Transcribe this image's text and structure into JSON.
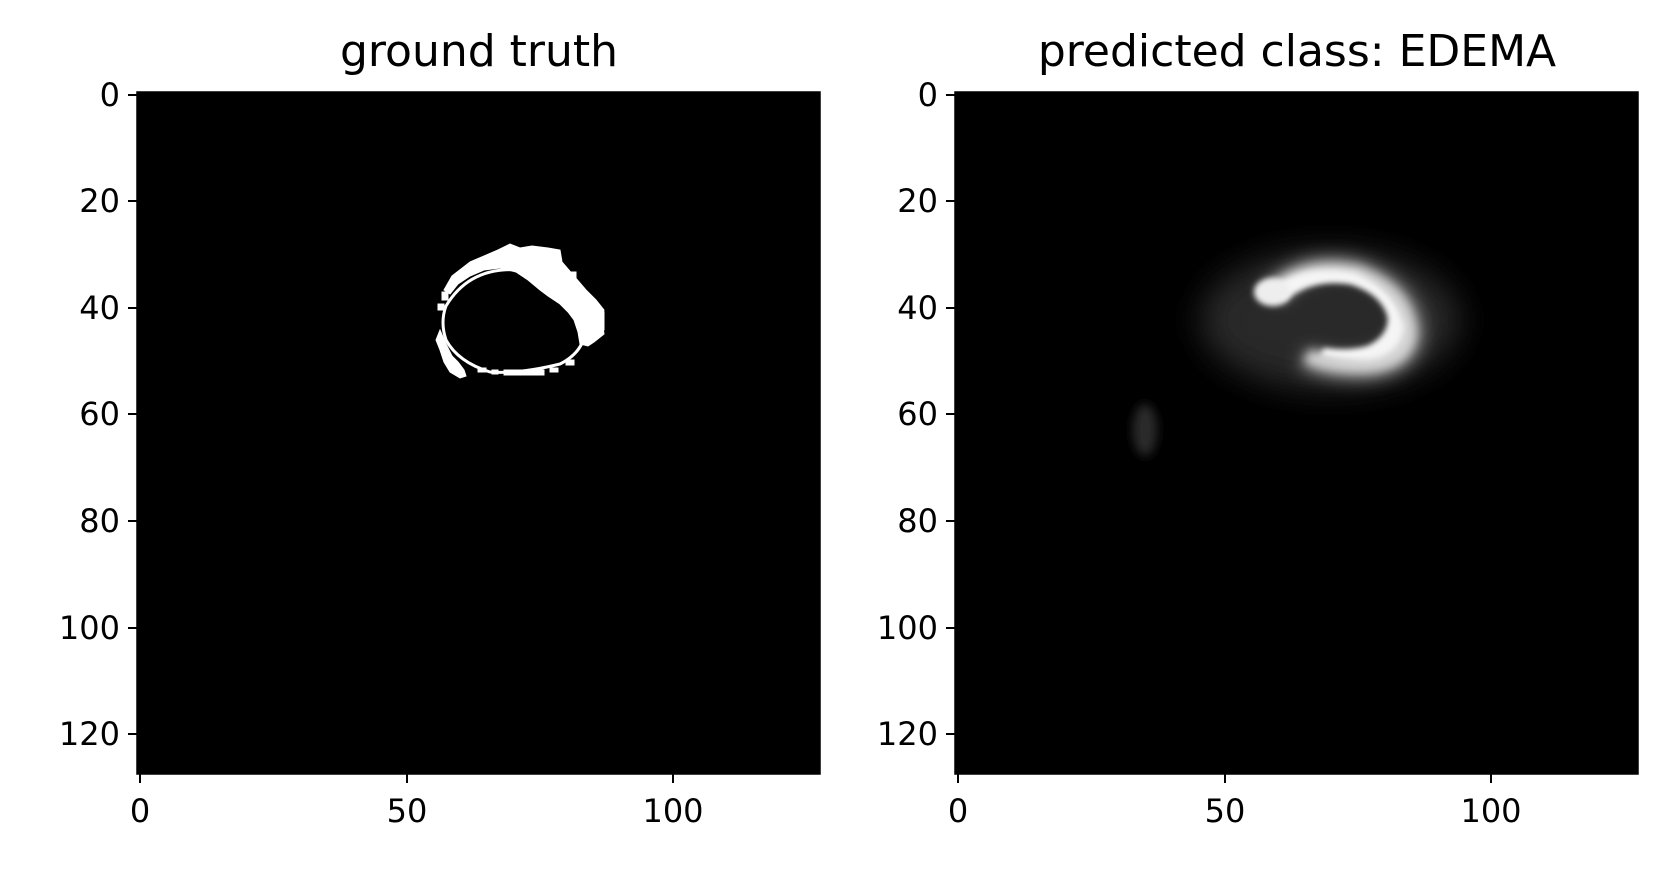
{
  "figure": {
    "panels": [
      {
        "title": "ground truth",
        "kind": "binary-mask",
        "image_size": [
          128,
          128
        ],
        "x_ticks": [
          0,
          50,
          100
        ],
        "y_ticks": [
          0,
          20,
          40,
          60,
          80,
          100,
          120
        ],
        "colormap": "gray"
      },
      {
        "title": "predicted class: EDEMA",
        "kind": "probability-map",
        "image_size": [
          128,
          128
        ],
        "x_ticks": [
          0,
          50,
          100
        ],
        "y_ticks": [
          0,
          20,
          40,
          60,
          80,
          100,
          120
        ],
        "colormap": "gray"
      }
    ],
    "colors": {
      "background": "#ffffff",
      "image_bg": "#000000",
      "mask": "#ffffff",
      "axis": "#000000"
    }
  }
}
